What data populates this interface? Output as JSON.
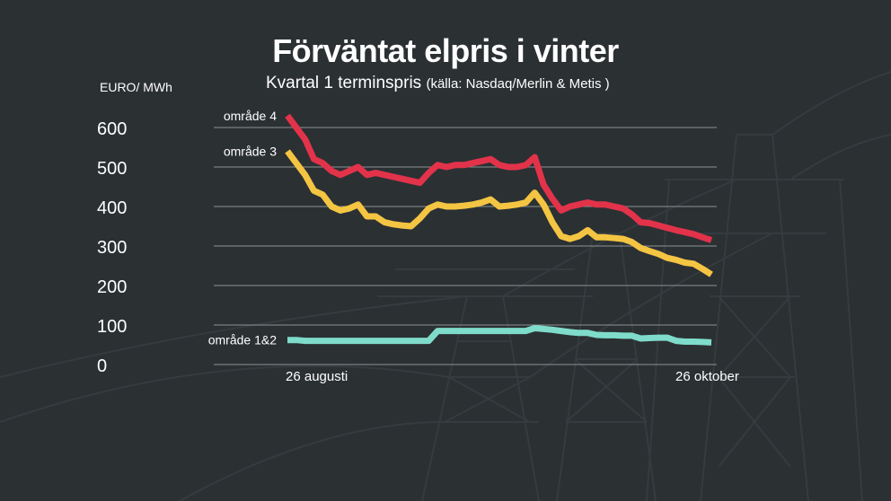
{
  "title": "Förväntat elpris i vinter",
  "subtitle": "Kvartal 1 terminspris",
  "source": "(källa: Nasdaq/Merlin & Metis )",
  "colors": {
    "background": "#2b3033",
    "grid": "#8c9296",
    "area4": "#e2334a",
    "area3": "#f4c542",
    "area12": "#7fdcca"
  },
  "chart_data": {
    "type": "line",
    "title": "Förväntat elpris i vinter",
    "subtitle": "Kvartal 1 terminspris",
    "ylabel": "EURO/ MWh",
    "ylim": [
      0,
      600
    ],
    "yticks": [
      0,
      100,
      200,
      300,
      400,
      500,
      600
    ],
    "x_start_label": "26 augusti",
    "x_end_label": "26 oktober",
    "grid": true,
    "legend": "inline-left",
    "series": [
      {
        "name": "område 4",
        "color": "#e2334a",
        "values": [
          630,
          600,
          570,
          520,
          510,
          490,
          480,
          490,
          500,
          480,
          485,
          480,
          475,
          470,
          465,
          460,
          485,
          505,
          500,
          505,
          505,
          510,
          515,
          520,
          505,
          500,
          500,
          505,
          525,
          455,
          420,
          390,
          400,
          405,
          410,
          405,
          405,
          400,
          395,
          380,
          360,
          358,
          352,
          346,
          340,
          335,
          330,
          322,
          315
        ]
      },
      {
        "name": "område 3",
        "color": "#f4c542",
        "values": [
          540,
          510,
          480,
          440,
          430,
          400,
          390,
          395,
          405,
          375,
          375,
          360,
          355,
          352,
          350,
          370,
          395,
          405,
          400,
          400,
          402,
          405,
          410,
          418,
          400,
          402,
          405,
          410,
          435,
          405,
          360,
          325,
          318,
          325,
          340,
          322,
          322,
          320,
          318,
          310,
          295,
          287,
          280,
          270,
          265,
          258,
          255,
          242,
          228
        ]
      },
      {
        "name": "område 1&2",
        "color": "#7fdcca",
        "values": [
          62,
          62,
          60,
          60,
          60,
          60,
          60,
          60,
          60,
          60,
          60,
          60,
          60,
          60,
          60,
          60,
          60,
          85,
          85,
          85,
          85,
          85,
          85,
          85,
          85,
          85,
          85,
          85,
          92,
          90,
          88,
          85,
          82,
          80,
          80,
          75,
          74,
          74,
          73,
          73,
          66,
          67,
          68,
          68,
          60,
          58,
          58,
          57,
          56
        ]
      }
    ]
  }
}
